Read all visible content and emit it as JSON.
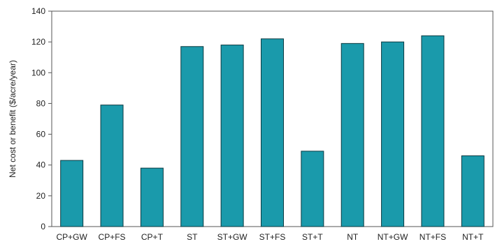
{
  "chart_data": {
    "type": "bar",
    "title": "",
    "xlabel": "",
    "ylabel": "Net cost or benefit ($/acre/year)",
    "ylim": [
      0,
      140
    ],
    "yticks": [
      0,
      20,
      40,
      60,
      80,
      100,
      120,
      140
    ],
    "grid": false,
    "categories": [
      "CP+GW",
      "CP+FS",
      "CP+T",
      "ST",
      "ST+GW",
      "ST+FS",
      "ST+T",
      "NT",
      "NT+GW",
      "NT+FS",
      "NT+T"
    ],
    "values": [
      43,
      79,
      38,
      117,
      118,
      122,
      49,
      119,
      120,
      124,
      46
    ],
    "bar_color": "#1a9aab",
    "bar_edge_color": "#0b3a41"
  }
}
